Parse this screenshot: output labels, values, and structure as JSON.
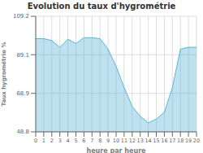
{
  "chart_data": {
    "type": "area",
    "title": "Evolution du taux d'hygrométrie",
    "xlabel": "heure par heure",
    "ylabel": "Taux hygrométrie %",
    "x": [
      0,
      1,
      2,
      3,
      4,
      5,
      6,
      7,
      8,
      9,
      10,
      11,
      12,
      13,
      14,
      15,
      16,
      17,
      18,
      19,
      20
    ],
    "values": [
      97.5,
      97.5,
      96.5,
      93.0,
      97.2,
      95.0,
      98.0,
      98.0,
      97.5,
      92.0,
      83.0,
      72.0,
      62.0,
      57.0,
      53.5,
      55.5,
      59.0,
      72.0,
      92.0,
      93.0,
      93.0
    ],
    "color": "#5ab4d6",
    "xlim": [
      0,
      20
    ],
    "xticks": [
      0,
      1,
      2,
      3,
      4,
      5,
      6,
      7,
      8,
      9,
      10,
      11,
      12,
      13,
      14,
      15,
      16,
      17,
      18,
      19,
      20
    ],
    "ylim": [
      48.8,
      109.2
    ],
    "yticks": [
      48.8,
      68.9,
      89.1,
      109.2
    ],
    "grid": true
  }
}
